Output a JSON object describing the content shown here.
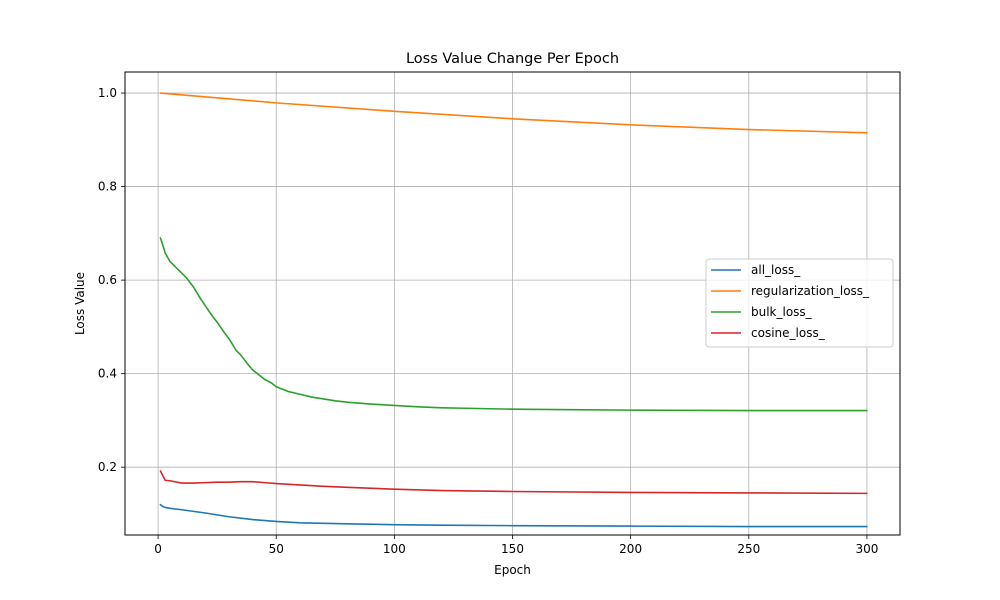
{
  "chart_data": {
    "type": "line",
    "title": "Loss Value Change Per Epoch",
    "xlabel": "Epoch",
    "ylabel": "Loss Value",
    "xlim": [
      -14,
      314
    ],
    "ylim": [
      0.055,
      1.045
    ],
    "xticks": [
      0,
      50,
      100,
      150,
      200,
      250,
      300
    ],
    "yticks": [
      0.2,
      0.4,
      0.6,
      0.8,
      1.0
    ],
    "ytick_labels": [
      "0.2",
      "0.4",
      "0.6",
      "0.8",
      "1.0"
    ],
    "grid": true,
    "legend_position": "center-right",
    "series": [
      {
        "name": "all_loss_",
        "color": "#1f77b4",
        "x": [
          1,
          2,
          3,
          5,
          10,
          20,
          30,
          40,
          50,
          60,
          70,
          80,
          100,
          120,
          150,
          200,
          250,
          300
        ],
        "y": [
          0.12,
          0.116,
          0.114,
          0.112,
          0.109,
          0.102,
          0.094,
          0.088,
          0.084,
          0.081,
          0.08,
          0.079,
          0.077,
          0.076,
          0.075,
          0.074,
          0.073,
          0.073
        ]
      },
      {
        "name": "regularization_loss_",
        "color": "#ff7f0e",
        "x": [
          1,
          50,
          100,
          150,
          200,
          250,
          300
        ],
        "y": [
          1.0,
          0.979,
          0.961,
          0.945,
          0.932,
          0.922,
          0.915
        ]
      },
      {
        "name": "bulk_loss_",
        "color": "#2ca02c",
        "x": [
          1,
          2,
          3,
          5,
          7,
          10,
          12,
          15,
          18,
          20,
          22,
          25,
          28,
          30,
          33,
          35,
          38,
          40,
          43,
          45,
          48,
          50,
          55,
          60,
          65,
          70,
          75,
          80,
          90,
          100,
          110,
          120,
          130,
          150,
          175,
          200,
          250,
          300
        ],
        "y": [
          0.69,
          0.675,
          0.658,
          0.64,
          0.63,
          0.615,
          0.605,
          0.585,
          0.56,
          0.545,
          0.53,
          0.51,
          0.488,
          0.475,
          0.45,
          0.44,
          0.42,
          0.408,
          0.396,
          0.388,
          0.38,
          0.372,
          0.362,
          0.356,
          0.35,
          0.346,
          0.342,
          0.339,
          0.335,
          0.332,
          0.329,
          0.327,
          0.326,
          0.324,
          0.323,
          0.322,
          0.321,
          0.321
        ]
      },
      {
        "name": "cosine_loss_",
        "color": "#d62728",
        "x": [
          1,
          2,
          3,
          5,
          8,
          10,
          15,
          20,
          25,
          30,
          35,
          40,
          45,
          50,
          60,
          70,
          80,
          100,
          120,
          150,
          200,
          250,
          300
        ],
        "y": [
          0.192,
          0.182,
          0.172,
          0.171,
          0.168,
          0.166,
          0.166,
          0.167,
          0.168,
          0.168,
          0.169,
          0.169,
          0.167,
          0.165,
          0.162,
          0.159,
          0.157,
          0.153,
          0.15,
          0.148,
          0.146,
          0.145,
          0.144
        ]
      }
    ]
  }
}
